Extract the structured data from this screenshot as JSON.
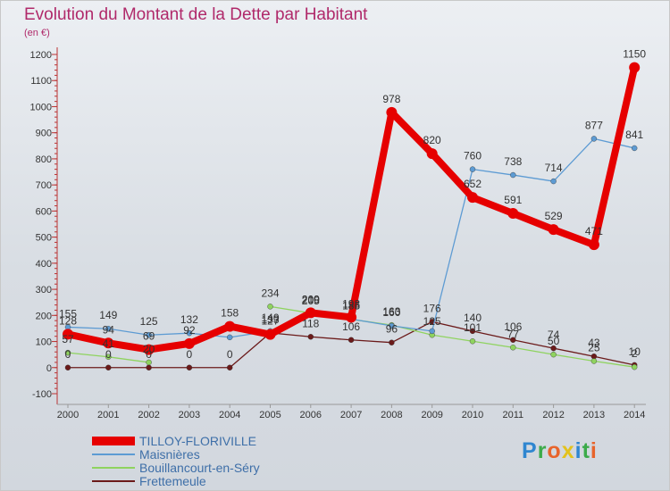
{
  "header": {
    "title": "Evolution du Montant de la Dette par Habitant",
    "unit": "(en €)"
  },
  "brand": {
    "letters": [
      "P",
      "r",
      "o",
      "x",
      "i",
      "t",
      "i"
    ],
    "colors": [
      "#2f86d0",
      "#3cab4a",
      "#e8642b",
      "#e3c21d",
      "#2f86d0",
      "#3cab4a",
      "#e8642b"
    ]
  },
  "chart_data": {
    "type": "line",
    "x": [
      "2000",
      "2001",
      "2002",
      "2003",
      "2004",
      "2005",
      "2006",
      "2007",
      "2008",
      "2009",
      "2010",
      "2011",
      "2012",
      "2013",
      "2014"
    ],
    "ylim": [
      -100,
      1200
    ],
    "yticks": [
      -100,
      0,
      100,
      200,
      300,
      400,
      500,
      600,
      700,
      800,
      900,
      1000,
      1100,
      1200
    ],
    "grid": false,
    "legend_position": "bottom",
    "series": [
      {
        "name": "TILLOY-FLORIVILLE",
        "color": "#e60000",
        "values": [
          128,
          94,
          69,
          92,
          158,
          127,
          210,
          193,
          978,
          820,
          652,
          591,
          529,
          471,
          1150
        ]
      },
      {
        "name": "Maisnières",
        "color": "#5d9bd3",
        "values": [
          155,
          149,
          125,
          132,
          116,
          140,
          205,
          186,
          160,
          140,
          760,
          738,
          714,
          877,
          841
        ]
      },
      {
        "name": "Bouillancourt-en-Séry",
        "color": "#8fd35f",
        "values": [
          57,
          41,
          20,
          null,
          null,
          234,
          209,
          185,
          163,
          125,
          101,
          77,
          50,
          25,
          2
        ]
      },
      {
        "name": "Frettemeule",
        "color": "#6b1a1a",
        "values": [
          0,
          0,
          0,
          0,
          0,
          133,
          118,
          106,
          96,
          176,
          140,
          106,
          74,
          43,
          10
        ]
      }
    ],
    "data_labels": [
      [
        "128",
        "94",
        "69",
        "92",
        "158",
        "127",
        "210",
        "193",
        "978",
        "820",
        "652",
        "591",
        "529",
        "471",
        "1150"
      ],
      [
        "155",
        "149",
        "125",
        "132",
        "",
        "140",
        "205",
        "186",
        "160",
        "",
        "760",
        "738",
        "714",
        "877",
        "841"
      ],
      [
        "57",
        "41",
        "20",
        "",
        "",
        "234",
        "209",
        "185",
        "163",
        "125",
        "101",
        "77",
        "50",
        "25",
        "2"
      ],
      [
        "0",
        "0",
        "0",
        "0",
        "0",
        "133",
        "118",
        "106",
        "96",
        "176",
        "140",
        "106",
        "74",
        "43",
        "10"
      ]
    ]
  }
}
